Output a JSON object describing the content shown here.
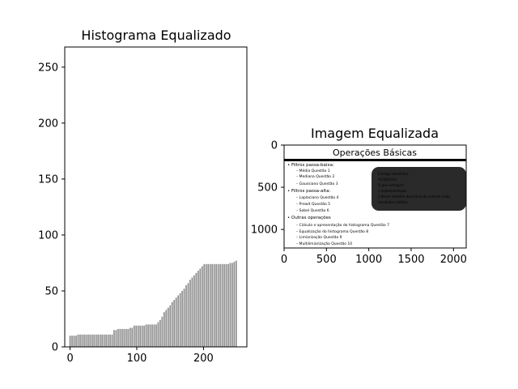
{
  "chart_data": [
    {
      "type": "bar",
      "title": "Histograma Equalizado",
      "xlabel": "",
      "ylabel": "",
      "xlim": [
        -8,
        265
      ],
      "ylim": [
        0,
        268
      ],
      "xticks": [
        0,
        100,
        200
      ],
      "yticks": [
        0,
        50,
        100,
        150,
        200,
        250
      ],
      "bar_color": "#808080",
      "x_start": 0,
      "x_step": 3,
      "values": [
        10,
        10,
        10,
        10,
        11,
        11,
        11,
        11,
        11,
        11,
        11,
        11,
        11,
        11,
        11,
        11,
        11,
        11,
        11,
        11,
        11,
        11,
        15,
        15,
        16,
        16,
        16,
        16,
        16,
        16,
        17,
        17,
        19,
        19,
        19,
        19,
        19,
        19,
        20,
        20,
        20,
        20,
        20,
        20,
        22,
        24,
        27,
        31,
        33,
        35,
        37,
        40,
        42,
        44,
        46,
        48,
        50,
        52,
        55,
        57,
        60,
        62,
        64,
        66,
        68,
        70,
        72,
        74,
        74,
        74,
        74,
        74,
        74,
        74,
        74,
        74,
        74,
        74,
        74,
        74,
        75,
        75,
        76,
        77
      ],
      "grid": false,
      "legend": "none"
    },
    {
      "type": "image",
      "title": "Imagem Equalizada",
      "xticks": [
        0,
        500,
        1000,
        1500,
        2000
      ],
      "yticks": [
        0,
        500,
        1000
      ],
      "xlim": [
        0,
        2150
      ],
      "ylim": [
        1220,
        0
      ],
      "image_content": {
        "heading": "Operações Básicas",
        "lines": [
          "•  Filtros passa-baixa:",
          "–  Média    Questão 1",
          "–  Mediana  Questão 2",
          "–  Gaussiano  Questão 3",
          "•  Filtros passa-alta:",
          "–  Laplaciano  Questão 4",
          "–  Prewit  Questão 5",
          "–  Sobel  Questão 6",
          "•  Outras operações",
          "–  Cálculo e apresentação do histograma  Questão 7",
          "–  Equalização do histograma  Questão 8",
          "–  Limiarização  Questão 9",
          "–  Multilimiarização  Questão 10"
        ],
        "box_lines": [
          "Entrega (deadline):",
          "01/04/2024",
          "O que entregar?",
          "1 implementação",
          "2 Breve relatório descritivo do método e dos",
          "resultados obtidos"
        ]
      }
    }
  ]
}
